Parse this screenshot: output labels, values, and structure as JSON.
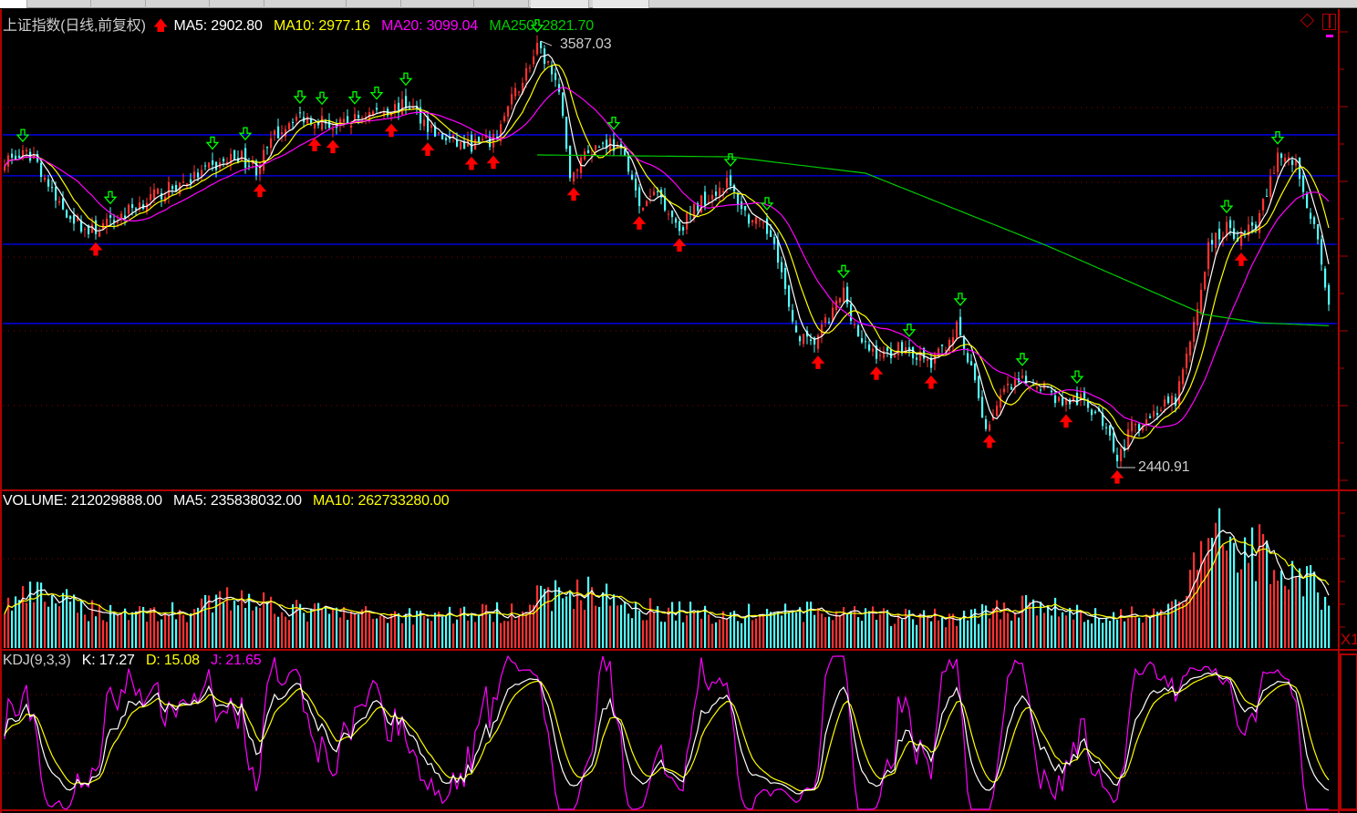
{
  "price_panel": {
    "title": "上证指数(日线,前复权)",
    "ma5_label": "MA5: 2902.80",
    "ma10_label": "MA10: 2977.16",
    "ma20_label": "MA20: 3099.04",
    "ma250_label": "MA250: 2821.70",
    "high_label": "3587.03",
    "low_label": "2440.91"
  },
  "volume_panel": {
    "volume_label": "VOLUME: 212029888.00",
    "ma5_label": "MA5: 235838032.00",
    "ma10_label": "MA10: 262733280.00",
    "axis_label": "X1"
  },
  "kdj_panel": {
    "title": "KDJ(9,3,3)",
    "k_label": "K: 17.27",
    "d_label": "D: 15.08",
    "j_label": "J: 21.65"
  },
  "colors": {
    "up": "#ff3232",
    "down": "#54ffff",
    "ma5": "#ffffff",
    "ma10": "#ffff00",
    "ma20": "#ff00ff",
    "ma250": "#00cc00",
    "level_line": "#0000ff",
    "frame": "#b00000",
    "buy_signal": "#ff0000",
    "sell_signal": "#00ff00"
  },
  "chart_data": [
    {
      "type": "candlestick",
      "title": "上证指数(日线,前复权)",
      "ylim": [
        2382,
        3668
      ],
      "grid": true,
      "bars": 364,
      "close_path": [
        [
          0,
          3269
        ],
        [
          8,
          3281
        ],
        [
          14,
          3158
        ],
        [
          23,
          3073
        ],
        [
          29,
          3097
        ],
        [
          36,
          3146
        ],
        [
          49,
          3207
        ],
        [
          59,
          3256
        ],
        [
          64,
          3281
        ],
        [
          69,
          3244
        ],
        [
          74,
          3330
        ],
        [
          79,
          3384
        ],
        [
          86,
          3379
        ],
        [
          91,
          3354
        ],
        [
          99,
          3391
        ],
        [
          111,
          3416
        ],
        [
          119,
          3330
        ],
        [
          126,
          3305
        ],
        [
          134,
          3318
        ],
        [
          139,
          3428
        ],
        [
          146,
          3563
        ],
        [
          149,
          3526
        ],
        [
          153,
          3403
        ],
        [
          155,
          3207
        ],
        [
          159,
          3293
        ],
        [
          166,
          3318
        ],
        [
          171,
          3256
        ],
        [
          174,
          3134
        ],
        [
          179,
          3183
        ],
        [
          185,
          3085
        ],
        [
          191,
          3158
        ],
        [
          198,
          3207
        ],
        [
          204,
          3109
        ],
        [
          211,
          3060
        ],
        [
          216,
          2816
        ],
        [
          221,
          2767
        ],
        [
          226,
          2840
        ],
        [
          230,
          2914
        ],
        [
          235,
          2767
        ],
        [
          241,
          2742
        ],
        [
          246,
          2767
        ],
        [
          254,
          2718
        ],
        [
          261,
          2816
        ],
        [
          266,
          2669
        ],
        [
          269,
          2546
        ],
        [
          274,
          2644
        ],
        [
          279,
          2669
        ],
        [
          284,
          2669
        ],
        [
          289,
          2620
        ],
        [
          296,
          2620
        ],
        [
          303,
          2546
        ],
        [
          305,
          2460
        ],
        [
          309,
          2546
        ],
        [
          316,
          2595
        ],
        [
          321,
          2620
        ],
        [
          326,
          2816
        ],
        [
          330,
          3036
        ],
        [
          335,
          3085
        ],
        [
          339,
          3060
        ],
        [
          344,
          3109
        ],
        [
          349,
          3281
        ],
        [
          354,
          3256
        ],
        [
          359,
          3085
        ],
        [
          363,
          2889
        ]
      ],
      "high": {
        "bar": 147,
        "value": 3587.03
      },
      "low": {
        "bar": 305,
        "value": 2440.91
      },
      "level_lines": [
        3335,
        3225,
        3041,
        2828
      ],
      "ma250_path": [
        [
          146,
          3281
        ],
        [
          199,
          3276
        ],
        [
          236,
          3232
        ],
        [
          286,
          3036
        ],
        [
          329,
          2852
        ],
        [
          344,
          2830
        ],
        [
          363,
          2822
        ]
      ],
      "series": [
        {
          "name": "MA5",
          "last": 2902.8
        },
        {
          "name": "MA10",
          "last": 2977.16
        },
        {
          "name": "MA20",
          "last": 3099.04
        },
        {
          "name": "MA250",
          "last": 2821.7
        }
      ]
    },
    {
      "type": "bar",
      "title": "VOLUME",
      "volume_path": [
        [
          0,
          180000000
        ],
        [
          8,
          230000000
        ],
        [
          25,
          160000000
        ],
        [
          50,
          150000000
        ],
        [
          65,
          230000000
        ],
        [
          80,
          160000000
        ],
        [
          100,
          140000000
        ],
        [
          135,
          150000000
        ],
        [
          150,
          230000000
        ],
        [
          160,
          240000000
        ],
        [
          175,
          170000000
        ],
        [
          200,
          140000000
        ],
        [
          215,
          160000000
        ],
        [
          230,
          140000000
        ],
        [
          260,
          130000000
        ],
        [
          275,
          170000000
        ],
        [
          285,
          180000000
        ],
        [
          300,
          130000000
        ],
        [
          320,
          170000000
        ],
        [
          333,
          500000000
        ],
        [
          345,
          400000000
        ],
        [
          355,
          320000000
        ],
        [
          363,
          212029888
        ]
      ],
      "series": [
        {
          "name": "VOLUME",
          "last": 212029888.0
        },
        {
          "name": "MA5",
          "last": 235838032.0
        },
        {
          "name": "MA10",
          "last": 262733280.0
        }
      ]
    },
    {
      "type": "line",
      "title": "KDJ(9,3,3)",
      "ylim": [
        0,
        100
      ],
      "series": [
        {
          "name": "K",
          "last": 17.27
        },
        {
          "name": "D",
          "last": 15.08
        },
        {
          "name": "J",
          "last": 21.65
        }
      ]
    }
  ]
}
